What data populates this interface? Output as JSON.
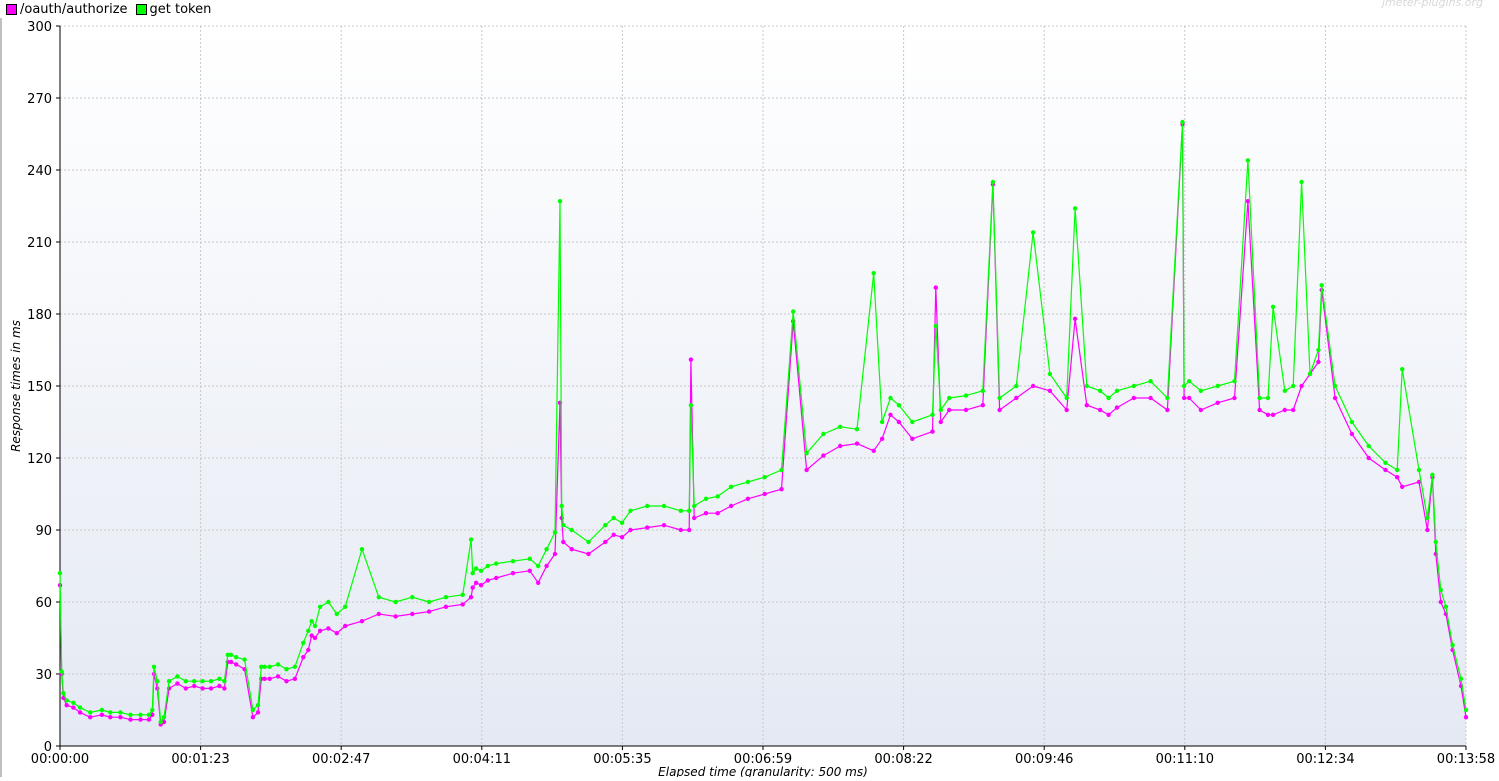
{
  "watermark": "jmeter-plugins.org",
  "colors": {
    "series_authorize": "#ff00ff",
    "series_token": "#00ff00",
    "grid": "#c8c8c8",
    "plot_bg_top": "#ffffff",
    "plot_bg_bottom": "#e4e9f3"
  },
  "chart_data": {
    "type": "line",
    "title": "",
    "xlabel": "Elapsed time (granularity: 500 ms)",
    "ylabel": "Response times in ms",
    "ylim": [
      0,
      300
    ],
    "yticks": [
      0,
      30,
      60,
      90,
      120,
      150,
      180,
      210,
      240,
      270,
      300
    ],
    "xlim_seconds": [
      0,
      838
    ],
    "xticks": [
      "00:00:00",
      "00:01:23",
      "00:02:47",
      "00:04:11",
      "00:05:35",
      "00:06:59",
      "00:08:22",
      "00:09:46",
      "00:11:10",
      "00:12:34",
      "00:13:58"
    ],
    "grid": true,
    "legend_position": "top-left",
    "series": [
      {
        "name": "/oauth/authorize",
        "color": "#ff00ff",
        "x": [
          0,
          1,
          2,
          4,
          8,
          12,
          18,
          25,
          30,
          36,
          42,
          48,
          53,
          55,
          56,
          58,
          60,
          62,
          65,
          70,
          75,
          80,
          85,
          90,
          95,
          98,
          100,
          102,
          105,
          110,
          115,
          118,
          120,
          122,
          125,
          130,
          135,
          140,
          145,
          148,
          150,
          152,
          155,
          160,
          165,
          170,
          180,
          190,
          200,
          210,
          220,
          230,
          240,
          245,
          246,
          248,
          251,
          255,
          260,
          270,
          280,
          285,
          290,
          295,
          298,
          299,
          300,
          305,
          315,
          325,
          330,
          335,
          340,
          350,
          360,
          370,
          375,
          376,
          378,
          385,
          392,
          400,
          410,
          420,
          430,
          437,
          445,
          455,
          465,
          475,
          485,
          490,
          495,
          500,
          508,
          520,
          522,
          525,
          530,
          540,
          550,
          556,
          560,
          570,
          580,
          590,
          600,
          605,
          612,
          620,
          625,
          630,
          640,
          650,
          660,
          669,
          670,
          673,
          680,
          690,
          700,
          708,
          715,
          720,
          723,
          730,
          735,
          740,
          745,
          750,
          752,
          760,
          770,
          780,
          790,
          797,
          800,
          810,
          815,
          818,
          820,
          823,
          826,
          830,
          835,
          838
        ],
        "y": [
          67,
          30,
          20,
          17,
          16,
          14,
          12,
          13,
          12,
          12,
          11,
          11,
          11,
          13,
          30,
          24,
          9,
          10,
          24,
          26,
          24,
          25,
          24,
          24,
          25,
          24,
          35,
          35,
          34,
          32,
          12,
          14,
          28,
          28,
          28,
          29,
          27,
          28,
          37,
          40,
          46,
          45,
          48,
          49,
          47,
          50,
          52,
          55,
          54,
          55,
          56,
          58,
          59,
          62,
          66,
          68,
          67,
          69,
          70,
          72,
          73,
          68,
          75,
          80,
          143,
          95,
          85,
          82,
          80,
          85,
          88,
          87,
          90,
          91,
          92,
          90,
          90,
          161,
          95,
          97,
          97,
          100,
          103,
          105,
          107,
          177,
          115,
          121,
          125,
          126,
          123,
          128,
          138,
          135,
          128,
          131,
          191,
          135,
          140,
          140,
          142,
          234,
          140,
          145,
          150,
          148,
          140,
          178,
          142,
          140,
          138,
          141,
          145,
          145,
          140,
          259,
          145,
          145,
          140,
          143,
          145,
          227,
          140,
          138,
          138,
          140,
          140,
          150,
          155,
          160,
          190,
          145,
          130,
          120,
          115,
          112,
          108,
          110,
          90,
          112,
          80,
          60,
          55,
          40,
          25,
          12
        ]
      },
      {
        "name": "get token",
        "color": "#00ff00",
        "x": [
          0,
          1,
          2,
          4,
          8,
          12,
          18,
          25,
          30,
          36,
          42,
          48,
          53,
          55,
          56,
          58,
          60,
          62,
          65,
          70,
          75,
          80,
          85,
          90,
          95,
          98,
          100,
          102,
          105,
          110,
          115,
          118,
          120,
          122,
          125,
          130,
          135,
          140,
          145,
          148,
          150,
          152,
          155,
          160,
          165,
          170,
          180,
          190,
          200,
          210,
          220,
          230,
          240,
          245,
          246,
          248,
          251,
          255,
          260,
          270,
          280,
          285,
          290,
          295,
          298,
          299,
          300,
          305,
          315,
          325,
          330,
          335,
          340,
          350,
          360,
          370,
          375,
          376,
          378,
          385,
          392,
          400,
          410,
          420,
          430,
          437,
          445,
          455,
          465,
          475,
          485,
          490,
          495,
          500,
          508,
          520,
          522,
          525,
          530,
          540,
          550,
          556,
          560,
          570,
          580,
          590,
          600,
          605,
          612,
          620,
          625,
          630,
          640,
          650,
          660,
          669,
          670,
          673,
          680,
          690,
          700,
          708,
          715,
          720,
          723,
          730,
          735,
          740,
          745,
          750,
          752,
          760,
          770,
          780,
          790,
          797,
          800,
          810,
          815,
          818,
          820,
          823,
          826,
          830,
          835,
          838
        ],
        "y": [
          72,
          31,
          22,
          19,
          18,
          16,
          14,
          15,
          14,
          14,
          13,
          13,
          13,
          15,
          33,
          27,
          10,
          12,
          27,
          29,
          27,
          27,
          27,
          27,
          28,
          27,
          38,
          38,
          37,
          36,
          15,
          17,
          33,
          33,
          33,
          34,
          32,
          33,
          43,
          48,
          52,
          50,
          58,
          60,
          55,
          58,
          82,
          62,
          60,
          62,
          60,
          62,
          63,
          86,
          72,
          74,
          73,
          75,
          76,
          77,
          78,
          75,
          82,
          89,
          227,
          100,
          92,
          90,
          85,
          92,
          95,
          93,
          98,
          100,
          100,
          98,
          98,
          142,
          100,
          103,
          104,
          108,
          110,
          112,
          115,
          181,
          122,
          130,
          133,
          132,
          197,
          135,
          145,
          142,
          135,
          138,
          175,
          140,
          145,
          146,
          148,
          235,
          145,
          150,
          214,
          155,
          145,
          224,
          150,
          148,
          145,
          148,
          150,
          152,
          145,
          260,
          150,
          152,
          148,
          150,
          152,
          244,
          145,
          145,
          183,
          148,
          150,
          235,
          155,
          165,
          192,
          150,
          135,
          125,
          118,
          115,
          157,
          115,
          95,
          113,
          85,
          65,
          58,
          42,
          28,
          15
        ]
      }
    ]
  },
  "legend": {
    "items": [
      {
        "label": "/oauth/authorize",
        "color": "#ff00ff"
      },
      {
        "label": "get token",
        "color": "#00ff00"
      }
    ]
  }
}
